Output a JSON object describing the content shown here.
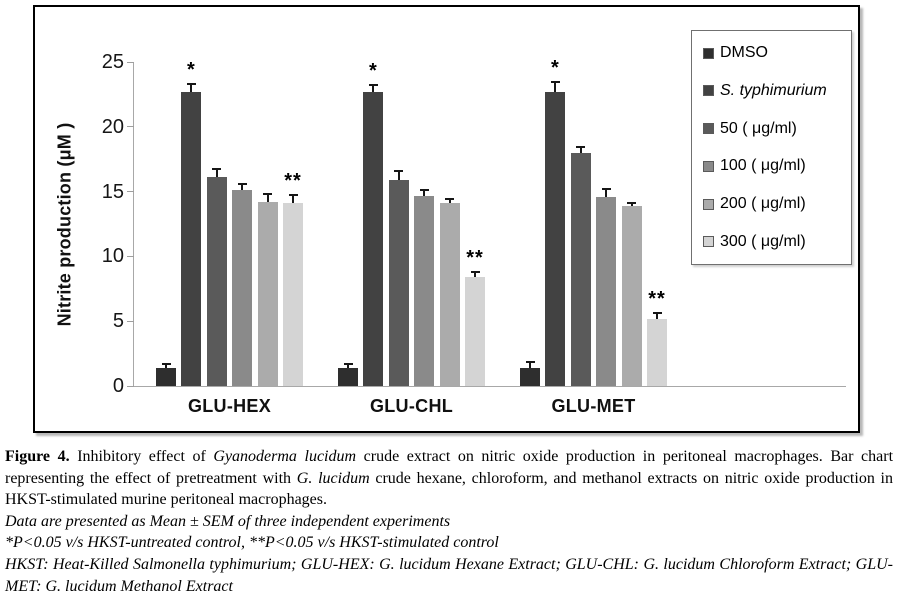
{
  "chart_data": {
    "type": "bar",
    "title": "",
    "xlabel": "",
    "ylabel": "Nitrite production (μM )",
    "ylim": [
      0,
      25
    ],
    "yticks": [
      0,
      5,
      10,
      15,
      20,
      25
    ],
    "grid": false,
    "legend_position": "right-inside",
    "categories": [
      "GLU-HEX",
      "GLU-CHL",
      "GLU-MET"
    ],
    "series": [
      {
        "name": "DMSO",
        "italic": false,
        "color": "#2e2e2e",
        "values": [
          1.4,
          1.4,
          1.4
        ],
        "sem": [
          0.4,
          0.4,
          0.5
        ],
        "annotations": [
          "",
          "",
          ""
        ]
      },
      {
        "name": "S. typhimurium",
        "italic": true,
        "color": "#424242",
        "values": [
          22.7,
          22.7,
          22.7
        ],
        "sem": [
          0.7,
          0.6,
          0.8
        ],
        "annotations": [
          "*",
          "*",
          "*"
        ]
      },
      {
        "name": "50 ( μg/ml)",
        "italic": false,
        "color": "#5a5a5a",
        "values": [
          16.1,
          15.9,
          18.0
        ],
        "sem": [
          0.7,
          0.8,
          0.5
        ],
        "annotations": [
          "",
          "",
          ""
        ]
      },
      {
        "name": "100 ( μg/ml)",
        "italic": false,
        "color": "#8a8a8a",
        "values": [
          15.1,
          14.7,
          14.6
        ],
        "sem": [
          0.6,
          0.5,
          0.7
        ],
        "annotations": [
          "",
          "",
          ""
        ]
      },
      {
        "name": "200 ( μg/ml)",
        "italic": false,
        "color": "#ababab",
        "values": [
          14.2,
          14.1,
          13.9
        ],
        "sem": [
          0.7,
          0.4,
          0.3
        ],
        "annotations": [
          "",
          "",
          ""
        ]
      },
      {
        "name": "300 ( μg/ml)",
        "italic": false,
        "color": "#d4d4d4",
        "values": [
          14.1,
          8.4,
          5.2
        ],
        "sem": [
          0.7,
          0.5,
          0.5
        ],
        "annotations": [
          "**",
          "**",
          "**"
        ]
      }
    ],
    "significance_markers": {
      "star": "*",
      "double_star": "**"
    }
  },
  "caption": {
    "paragraphs": [
      {
        "justify": true,
        "segments": [
          {
            "text": "Figure 4.",
            "bold": true
          },
          {
            "text": " Inhibitory effect of "
          },
          {
            "text": "Gyanoderma lucidum",
            "italic": true
          },
          {
            "text": " crude extract on nitric oxide production in peritoneal macrophages. Bar chart representing the effect of pretreatment with "
          },
          {
            "text": "G. lucidum",
            "italic": true
          },
          {
            "text": " crude hexane, chloroform, and methanol extracts on nitric oxide production in HKST-stimulated murine peritoneal macrophages."
          }
        ]
      },
      {
        "justify": false,
        "segments": [
          {
            "text": "Data are presented as Mean ± SEM of three independent experiments",
            "italic": true
          }
        ]
      },
      {
        "justify": false,
        "segments": [
          {
            "text": "*P<0.05 v/s HKST-untreated control, **P<0.05 v/s HKST-stimulated control",
            "italic": true
          }
        ]
      },
      {
        "justify": true,
        "segments": [
          {
            "text": "HKST: Heat-Killed Salmonella typhimurium; GLU-HEX: G. lucidum Hexane Extract; GLU-CHL: G. lucidum Chloroform Extract; GLU-MET: G. lucidum Methanol Extract",
            "italic": true
          }
        ]
      }
    ]
  }
}
